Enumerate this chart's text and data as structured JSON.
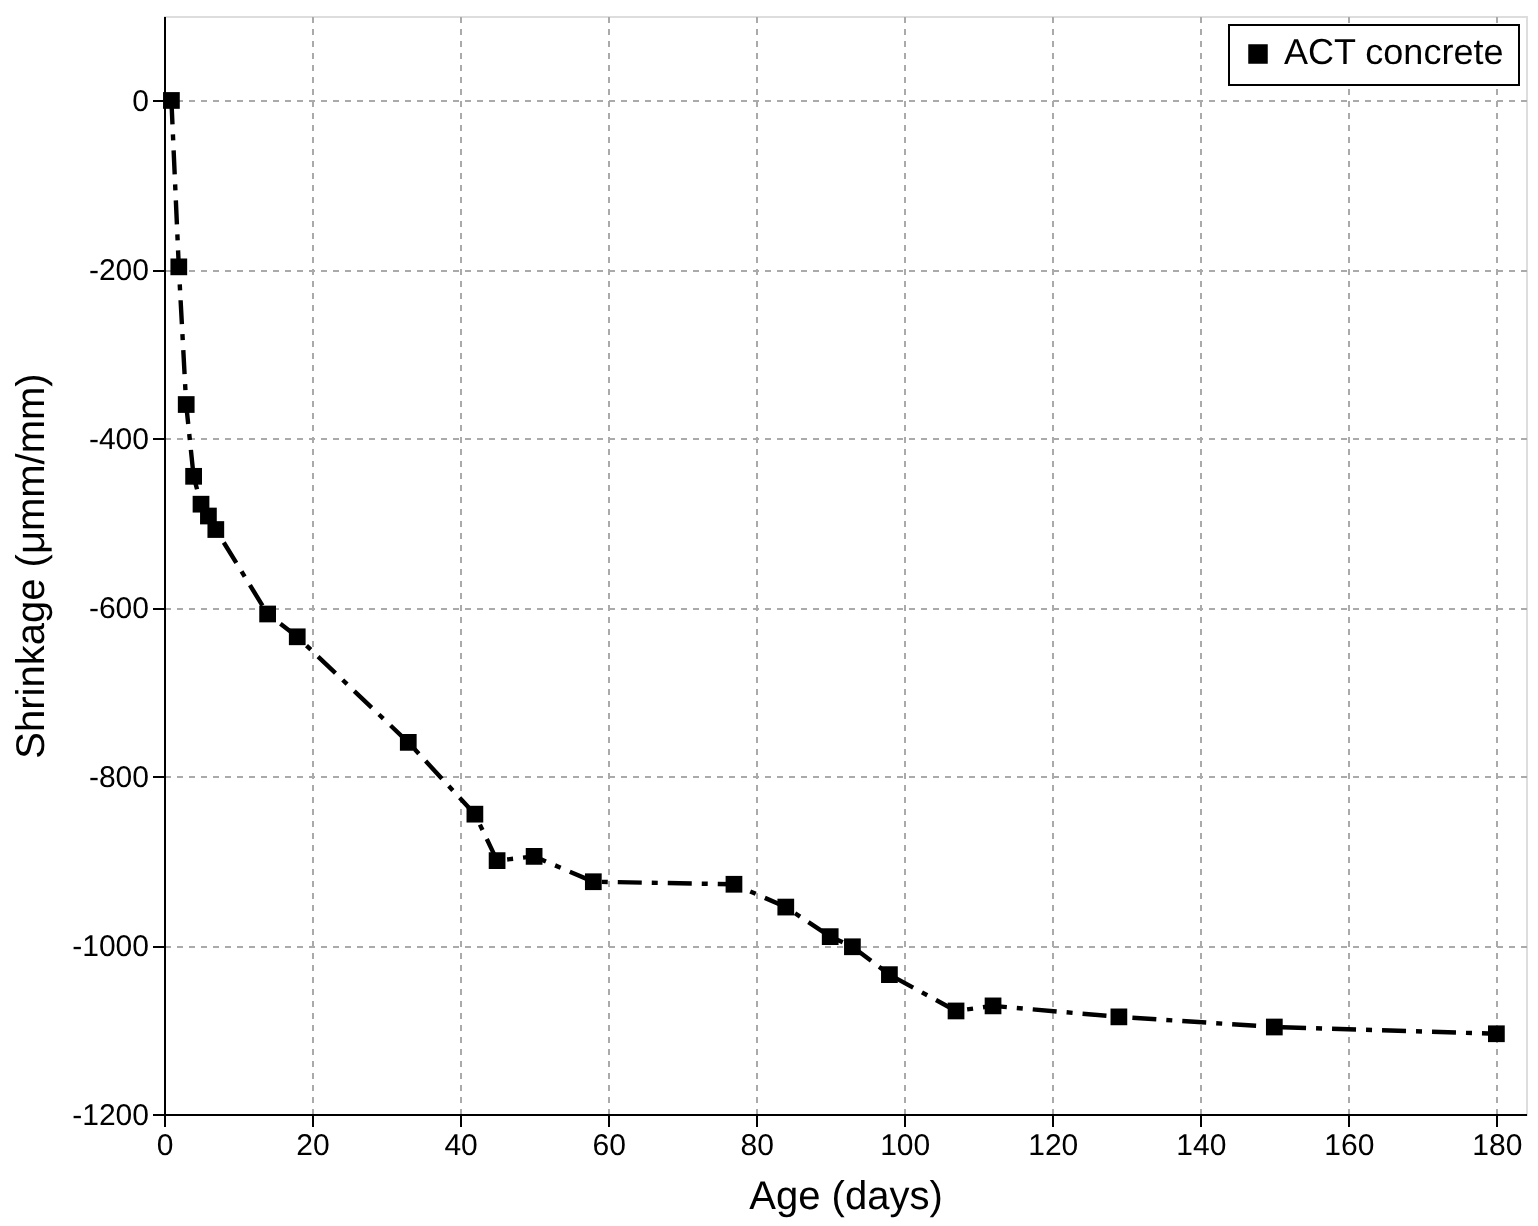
{
  "chart_data": {
    "type": "line",
    "xlabel": "Age (days)",
    "ylabel": "Shrinkage (μmm/mm)",
    "x": [
      1,
      2,
      3,
      4,
      5,
      6,
      7,
      14,
      18,
      33,
      42,
      45,
      50,
      58,
      77,
      84,
      90,
      93,
      98,
      107,
      112,
      129,
      150,
      180
    ],
    "series": [
      {
        "name": "ACT concrete",
        "color": "#000000",
        "values": [
          0,
          -197,
          -360,
          -445,
          -478,
          -492,
          -508,
          -608,
          -635,
          -760,
          -845,
          -900,
          -895,
          -925,
          -928,
          -955,
          -990,
          -1002,
          -1035,
          -1078,
          -1072,
          -1085,
          -1097,
          -1105
        ]
      }
    ],
    "xlim": [
      0,
      184
    ],
    "xticks": [
      0,
      20,
      40,
      60,
      80,
      100,
      120,
      140,
      160,
      180
    ],
    "ylim": [
      -1200,
      100
    ],
    "yticks": [
      -1200,
      -1000,
      -800,
      -600,
      -400,
      -200,
      0
    ],
    "grid": true,
    "legend": "top right",
    "marker": "square",
    "line_style": "dashed"
  }
}
